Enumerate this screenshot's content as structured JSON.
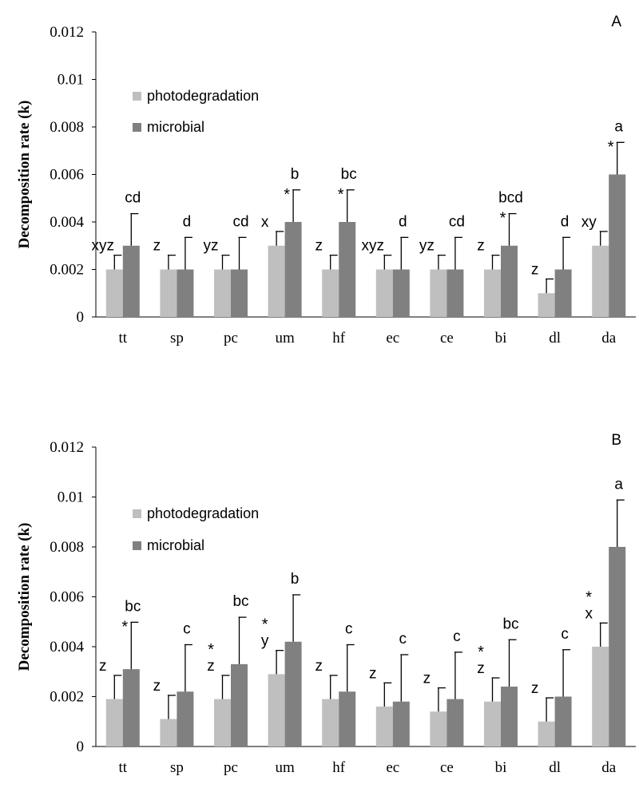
{
  "chart_data": [
    {
      "type": "bar",
      "panel_label": "A",
      "ylabel": "Decomposition rate (k)",
      "ylim": [
        0,
        0.012
      ],
      "yticks": [
        "0",
        "0.002",
        "0.004",
        "0.006",
        "0.008",
        "0.01",
        "0.012"
      ],
      "categories": [
        "tt",
        "sp",
        "pc",
        "um",
        "hf",
        "ec",
        "ce",
        "bi",
        "dl",
        "da"
      ],
      "legend_position": "upper-left",
      "grid": false,
      "series": [
        {
          "name": "photodegradation",
          "color": "#bfbfbf",
          "values": [
            0.002,
            0.002,
            0.002,
            0.003,
            0.002,
            0.002,
            0.002,
            0.002,
            0.001,
            0.003
          ],
          "errors": [
            0.0006,
            0.0006,
            0.0006,
            0.0006,
            0.0006,
            0.0006,
            0.0006,
            0.0006,
            0.0006,
            0.0006
          ],
          "letters": [
            "xyz",
            "z",
            "yz",
            "x",
            "z",
            "xyz",
            "yz",
            "z",
            "z",
            "xy"
          ],
          "stars": [
            "",
            "",
            "",
            "",
            "",
            "",
            "",
            "",
            "",
            ""
          ]
        },
        {
          "name": "microbial",
          "color": "#808080",
          "values": [
            0.003,
            0.002,
            0.002,
            0.004,
            0.004,
            0.002,
            0.002,
            0.003,
            0.002,
            0.006
          ],
          "errors": [
            0.00135,
            0.00135,
            0.00135,
            0.00135,
            0.00135,
            0.00135,
            0.00135,
            0.00135,
            0.00135,
            0.00135
          ],
          "letters": [
            "cd",
            "d",
            "cd",
            "b",
            "bc",
            "d",
            "cd",
            "bcd",
            "d",
            "a"
          ],
          "stars": [
            "",
            "",
            "",
            "*",
            "*",
            "",
            "",
            "*",
            "",
            "*"
          ]
        }
      ]
    },
    {
      "type": "bar",
      "panel_label": "B",
      "ylabel": "Decomposition rate (k)",
      "ylim": [
        0,
        0.012
      ],
      "yticks": [
        "0",
        "0.002",
        "0.004",
        "0.006",
        "0.008",
        "0.01",
        "0.012"
      ],
      "categories": [
        "tt",
        "sp",
        "pc",
        "um",
        "hf",
        "ec",
        "ce",
        "bi",
        "dl",
        "da"
      ],
      "legend_position": "upper-left",
      "grid": false,
      "series": [
        {
          "name": "photodegradation",
          "color": "#bfbfbf",
          "values": [
            0.0019,
            0.0011,
            0.0019,
            0.0029,
            0.0019,
            0.0016,
            0.0014,
            0.0018,
            0.001,
            0.004
          ],
          "errors": [
            0.00095,
            0.00095,
            0.00095,
            0.00095,
            0.00095,
            0.00095,
            0.00095,
            0.00095,
            0.00095,
            0.00095
          ],
          "letters": [
            "z",
            "z",
            "z",
            "y",
            "z",
            "z",
            "z",
            "z",
            "z",
            "x"
          ],
          "stars": [
            "",
            "",
            "*",
            "*",
            "",
            "",
            "",
            "*",
            "",
            "*"
          ]
        },
        {
          "name": "microbial",
          "color": "#808080",
          "values": [
            0.0031,
            0.0022,
            0.0033,
            0.0042,
            0.0022,
            0.0018,
            0.0019,
            0.0024,
            0.002,
            0.008
          ],
          "errors": [
            0.00188,
            0.00188,
            0.00188,
            0.00188,
            0.00188,
            0.00188,
            0.00188,
            0.00188,
            0.00188,
            0.00188
          ],
          "letters": [
            "bc",
            "c",
            "bc",
            "b",
            "c",
            "c",
            "c",
            "bc",
            "c",
            "a"
          ],
          "stars": [
            "*",
            "",
            "",
            "",
            "",
            "",
            "",
            "",
            "",
            ""
          ]
        }
      ]
    }
  ]
}
